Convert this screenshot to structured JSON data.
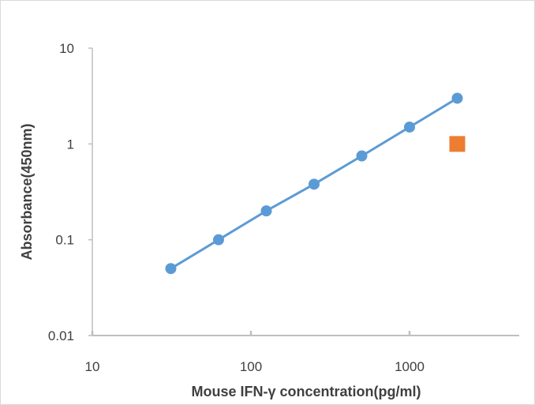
{
  "chart_data": {
    "type": "scatter",
    "title": "",
    "xlabel": "Mouse IFN-γ concentration(pg/ml)",
    "ylabel": "Absorbance(450nm)",
    "x_scale": "log",
    "y_scale": "log",
    "xlim": [
      10,
      5000
    ],
    "ylim": [
      0.01,
      10
    ],
    "x_ticks": [
      10,
      100,
      1000
    ],
    "x_tick_labels": [
      "10",
      "100",
      "1000"
    ],
    "y_ticks": [
      0.01,
      0.1,
      1,
      10
    ],
    "y_tick_labels": [
      "0.01",
      "0.1",
      "1",
      "10"
    ],
    "grid": false,
    "legend": "none",
    "series": [
      {
        "marker": "circle",
        "line": true,
        "color": "#5B9BD5",
        "x": [
          31.25,
          62.5,
          125,
          250,
          500,
          1000,
          2000
        ],
        "y": [
          0.05,
          0.1,
          0.2,
          0.38,
          0.75,
          1.5,
          3.0
        ]
      },
      {
        "marker": "square",
        "line": false,
        "color": "#ED7D31",
        "x": [
          2000
        ],
        "y": [
          1.0
        ]
      }
    ]
  }
}
